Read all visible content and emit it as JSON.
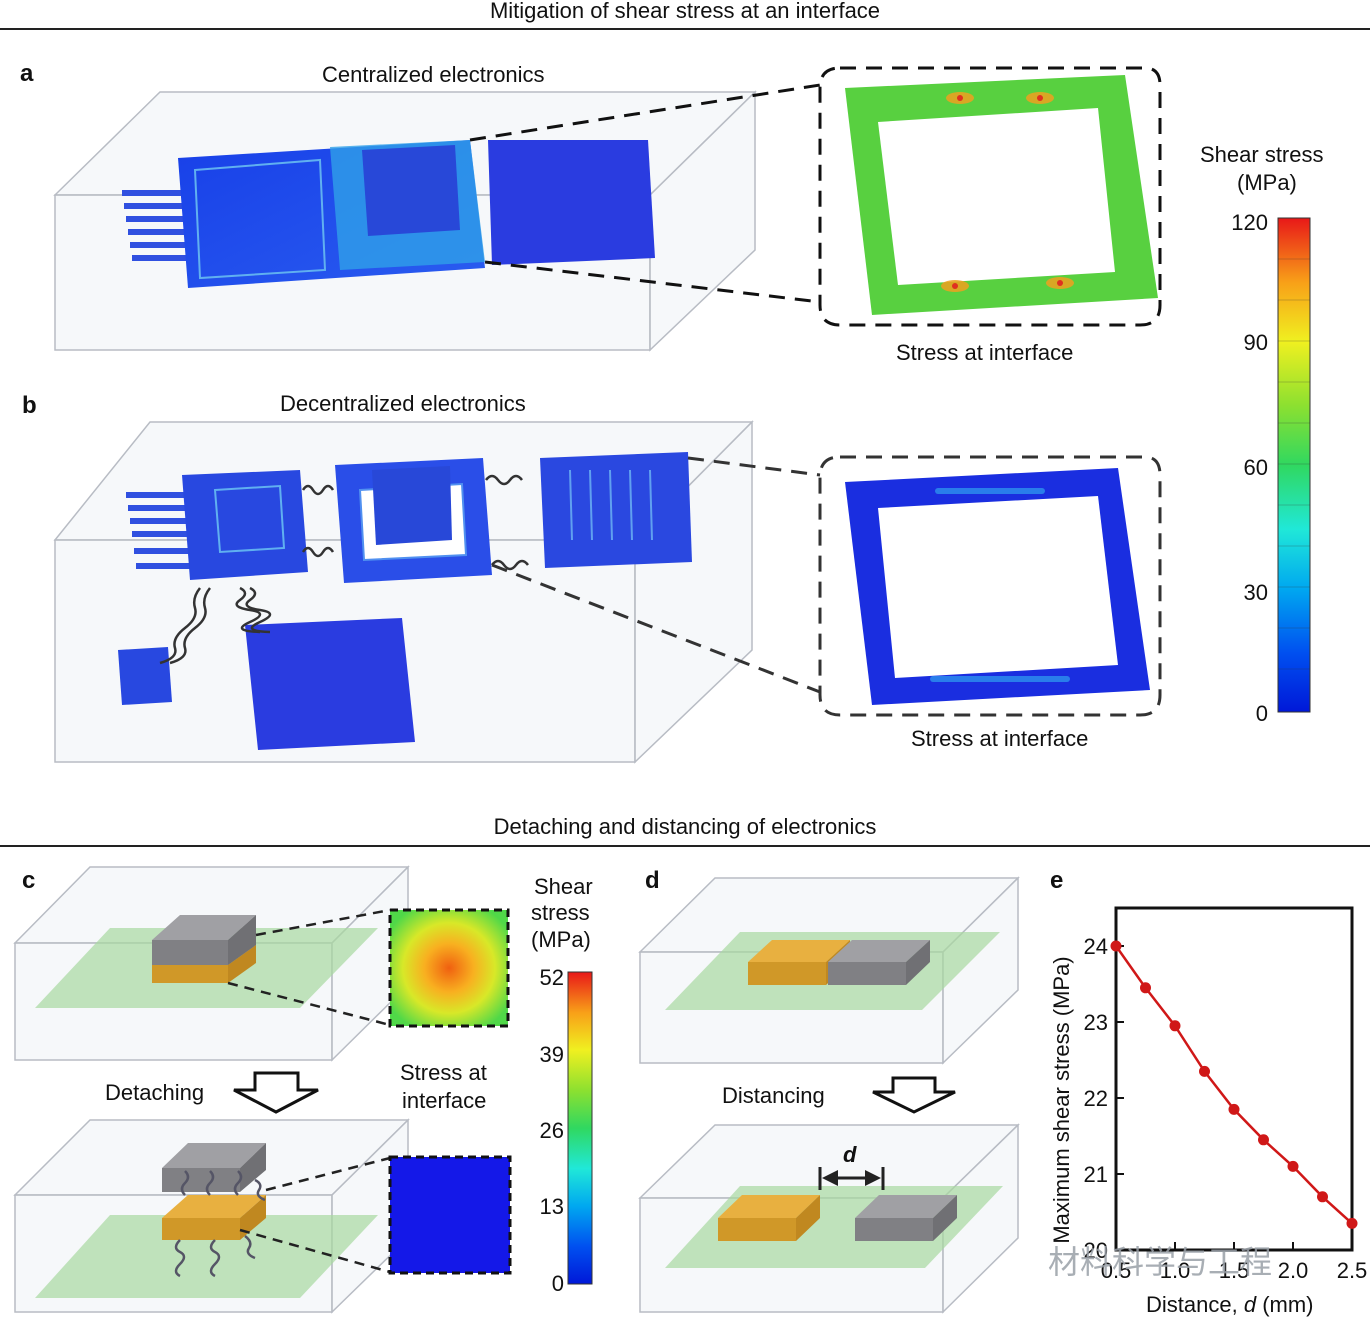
{
  "section_top": {
    "title": "Mitigation of shear stress at an interface"
  },
  "panel_a": {
    "letter": "a",
    "title": "Centralized electronics",
    "inset_caption": "Stress at interface"
  },
  "panel_b": {
    "letter": "b",
    "title": "Decentralized electronics",
    "inset_caption": "Stress at interface"
  },
  "colorbar_top": {
    "title_line1": "Shear stress",
    "title_line2": "(MPa)",
    "ticks": [
      "120",
      "90",
      "60",
      "30",
      "0"
    ]
  },
  "section_bottom": {
    "title": "Detaching and distancing of electronics"
  },
  "panel_c": {
    "letter": "c",
    "arrow_label": "Detaching",
    "inset_caption_line1": "Stress at",
    "inset_caption_line2": "interface",
    "colorbar_title_line1": "Shear",
    "colorbar_title_line2": "stress",
    "colorbar_title_line3": "(MPa)",
    "ticks": [
      "52",
      "39",
      "26",
      "13",
      "0"
    ]
  },
  "panel_d": {
    "letter": "d",
    "arrow_label": "Distancing",
    "gap_label": "d"
  },
  "panel_e": {
    "letter": "e",
    "watermark": "材料科学与工程",
    "chart_data": {
      "type": "line",
      "xlabel_prefix": "Distance, ",
      "xlabel_var": "d",
      "xlabel_unit": " (mm)",
      "ylabel": "Maximum shear stress (MPa)",
      "xlim": [
        0.5,
        2.5
      ],
      "ylim": [
        20,
        24.5
      ],
      "xticks": [
        "0.5",
        "1.0",
        "1.5",
        "2.0",
        "2.5"
      ],
      "yticks": [
        "20",
        "21",
        "22",
        "23",
        "24"
      ],
      "x": [
        0.5,
        0.75,
        1.0,
        1.25,
        1.5,
        1.75,
        2.0,
        2.25,
        2.5
      ],
      "y": [
        24.0,
        23.45,
        22.95,
        22.35,
        21.85,
        21.45,
        21.1,
        20.7,
        20.35
      ],
      "marker_color": "#d01818",
      "line_color": "#d01818"
    }
  }
}
